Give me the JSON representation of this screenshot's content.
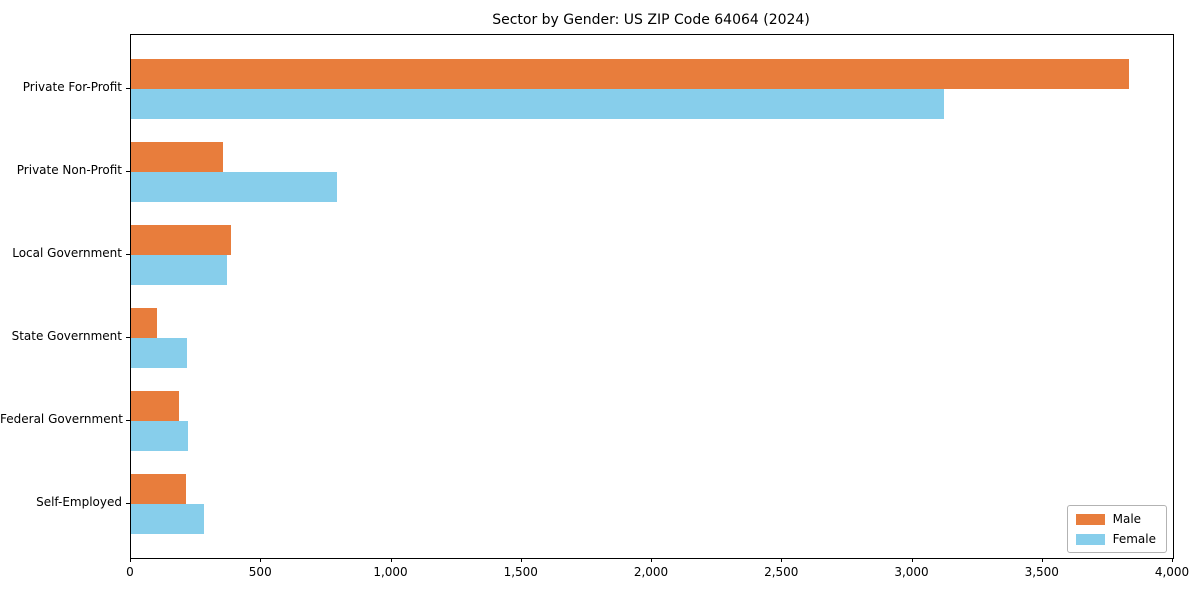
{
  "chart_data": {
    "type": "bar",
    "orientation": "horizontal",
    "title": "Sector by Gender: US ZIP Code 64064 (2024)",
    "xlabel": "",
    "ylabel": "",
    "categories": [
      "Private For-Profit",
      "Private Non-Profit",
      "Local Government",
      "State Government",
      "Federal Government",
      "Self-Employed"
    ],
    "series": [
      {
        "name": "Male",
        "color": "#e87d3c",
        "values": [
          3830,
          355,
          385,
          100,
          185,
          210
        ]
      },
      {
        "name": "Female",
        "color": "#87ceeb",
        "values": [
          3120,
          790,
          370,
          215,
          220,
          280
        ]
      }
    ],
    "xlim": [
      0,
      4000
    ],
    "xticks": [
      0,
      500,
      1000,
      1500,
      2000,
      2500,
      3000,
      3500,
      4000
    ],
    "grid": false,
    "legend_position": "lower right",
    "background_color": "#ffffff",
    "text_color": "#000000"
  }
}
